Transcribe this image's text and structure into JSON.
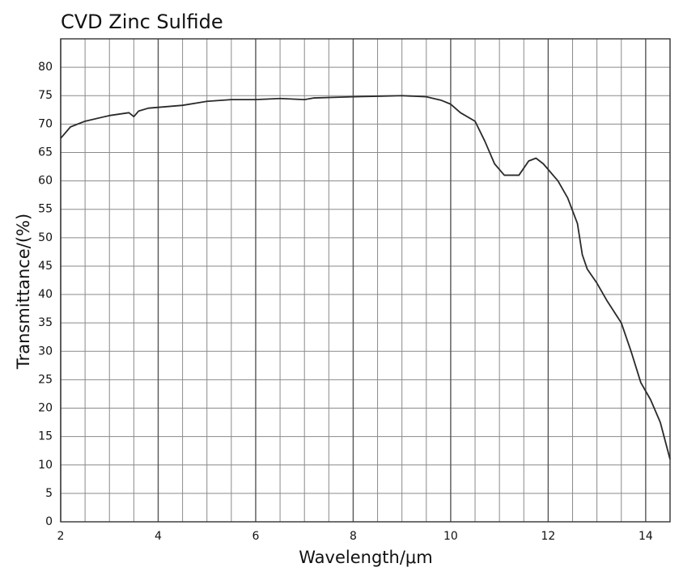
{
  "chart_data": {
    "type": "line",
    "title": "CVD Zinc Sulfide",
    "x_label": "Wavelength/μm",
    "y_label": "Transmittance/(%)",
    "series": [
      {
        "color": "#2a2a2a",
        "x": [
          2.0,
          2.2,
          2.5,
          3.0,
          3.4,
          3.5,
          3.6,
          3.8,
          4.5,
          5.0,
          5.5,
          6.0,
          6.5,
          7.0,
          7.2,
          8.0,
          8.5,
          9.0,
          9.5,
          9.8,
          10.0,
          10.2,
          10.5,
          10.7,
          10.9,
          11.1,
          11.4,
          11.6,
          11.75,
          11.9,
          12.2,
          12.4,
          12.6,
          12.7,
          12.8,
          13.0,
          13.2,
          13.5,
          13.7,
          13.9,
          14.1,
          14.3,
          14.5
        ],
        "values": [
          67.5,
          69.5,
          70.5,
          71.5,
          72,
          71.3,
          72.3,
          72.8,
          73.3,
          74,
          74.3,
          74.3,
          74.5,
          74.3,
          74.6,
          74.8,
          74.9,
          75,
          74.8,
          74.2,
          73.5,
          72,
          70.5,
          67,
          63,
          61,
          61,
          63.5,
          64,
          63,
          60,
          57,
          52.5,
          47,
          44.5,
          42,
          39,
          35,
          30,
          24.5,
          21.5,
          17.5,
          11
        ]
      }
    ],
    "xlim": [
      2,
      14.5
    ],
    "ylim": [
      0,
      85
    ],
    "xticks": [
      2,
      4,
      6,
      8,
      10,
      12,
      14
    ],
    "xgrid": [
      2.5,
      3,
      3.5,
      4.5,
      5,
      5.5,
      6.5,
      7,
      7.5,
      8.5,
      9,
      9.5,
      10.5,
      11,
      11.5,
      12.5,
      13,
      13.5,
      14.5
    ],
    "yticks": [
      0,
      5,
      10,
      15,
      20,
      25,
      30,
      35,
      40,
      45,
      50,
      55,
      60,
      65,
      70,
      75,
      80
    ],
    "grid": true
  }
}
